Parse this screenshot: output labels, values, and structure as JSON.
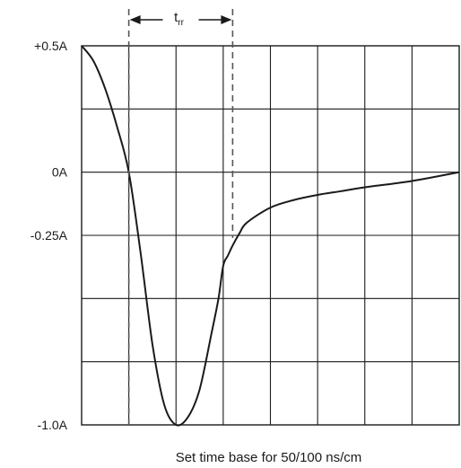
{
  "chart_data": {
    "type": "line",
    "title": "",
    "xlabel": "Set time base for 50/100 ns/cm",
    "ylabel": "",
    "y_ticks": [
      {
        "value": 0.5,
        "label": "+0.5A"
      },
      {
        "value": 0,
        "label": "0A"
      },
      {
        "value": -0.25,
        "label": "-0.25A"
      },
      {
        "value": -1.0,
        "label": "-1.0A"
      }
    ],
    "grid": true,
    "grid_divisions_x": 8,
    "grid_divisions_y": 6,
    "x_range_divisions": [
      0,
      8
    ],
    "y_range": [
      -1.0,
      0.5
    ],
    "series": [
      {
        "x_divisions": [
          0,
          0.25,
          0.5,
          0.75,
          1.0,
          1.25,
          1.5,
          1.75,
          2.0,
          2.25,
          2.5,
          2.75,
          2.9,
          3.0,
          3.1,
          3.2,
          3.35,
          3.5,
          4.0,
          4.5,
          5.0,
          5.5,
          6.0,
          7.0,
          8.0
        ],
        "y_amps": [
          0.5,
          0.44,
          0.33,
          0.18,
          0.0,
          -0.32,
          -0.68,
          -0.92,
          -1.0,
          -0.97,
          -0.86,
          -0.64,
          -0.5,
          -0.37,
          -0.33,
          -0.29,
          -0.24,
          -0.2,
          -0.14,
          -0.11,
          -0.09,
          -0.075,
          -0.06,
          -0.035,
          0.0
        ]
      }
    ],
    "annotation": {
      "label_main": "t",
      "label_sub": "rr",
      "x_start_division": 1.0,
      "x_end_division": 3.2
    }
  }
}
